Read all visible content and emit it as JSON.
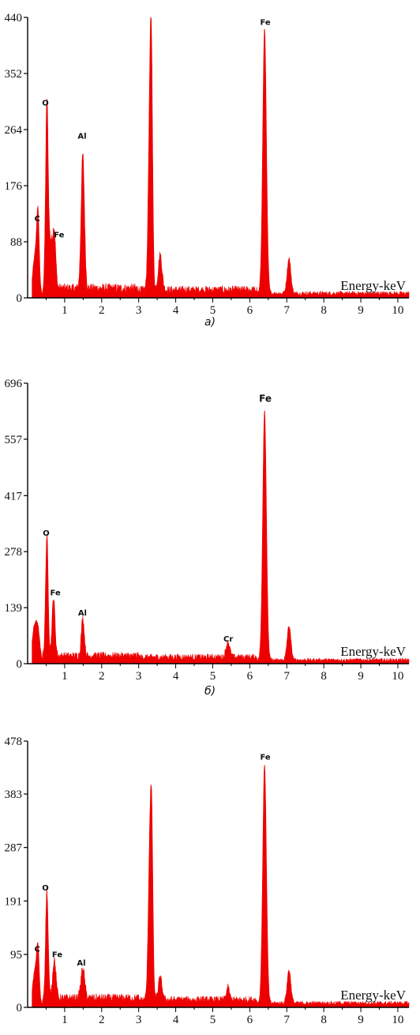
{
  "chart_data": [
    {
      "type": "area",
      "caption": "a)",
      "xlabel": "Energy-keV",
      "xlim": [
        0,
        10.3
      ],
      "ylim": [
        0,
        440
      ],
      "xticks": [
        1,
        2,
        3,
        4,
        5,
        6,
        7,
        8,
        9,
        10
      ],
      "yticks": [
        0,
        88,
        176,
        264,
        352,
        440
      ],
      "color": "#ee0000",
      "baseline": 14,
      "peaks": [
        {
          "x": 0.2,
          "y": 60,
          "w": 0.06
        },
        {
          "x": 0.28,
          "y": 112,
          "w": 0.035
        },
        {
          "x": 0.52,
          "y": 290,
          "w": 0.035
        },
        {
          "x": 0.62,
          "y": 70,
          "w": 0.05
        },
        {
          "x": 0.72,
          "y": 85,
          "w": 0.04
        },
        {
          "x": 1.49,
          "y": 210,
          "w": 0.045
        },
        {
          "x": 3.31,
          "y": 320,
          "w": 0.045
        },
        {
          "x": 3.35,
          "y": 180,
          "w": 0.03
        },
        {
          "x": 3.58,
          "y": 55,
          "w": 0.05
        },
        {
          "x": 6.4,
          "y": 415,
          "w": 0.05
        },
        {
          "x": 7.06,
          "y": 55,
          "w": 0.05
        }
      ],
      "labels": [
        {
          "text": "C",
          "x": 0.26,
          "y": 120
        },
        {
          "text": "O",
          "x": 0.48,
          "y": 302
        },
        {
          "text": "Fe",
          "x": 0.85,
          "y": 95
        },
        {
          "text": "Al",
          "x": 1.47,
          "y": 250
        },
        {
          "text": "Fe",
          "x": 6.42,
          "y": 428
        }
      ]
    },
    {
      "type": "area",
      "caption": "б)",
      "xlabel": "Energy-keV",
      "xlim": [
        0,
        10.3
      ],
      "ylim": [
        0,
        696
      ],
      "xticks": [
        1,
        2,
        3,
        4,
        5,
        6,
        7,
        8,
        9,
        10
      ],
      "yticks": [
        0,
        139,
        278,
        417,
        557,
        696
      ],
      "color": "#ee0000",
      "baseline": 18,
      "peaks": [
        {
          "x": 0.18,
          "y": 80,
          "w": 0.06
        },
        {
          "x": 0.28,
          "y": 70,
          "w": 0.05
        },
        {
          "x": 0.52,
          "y": 300,
          "w": 0.035
        },
        {
          "x": 0.7,
          "y": 145,
          "w": 0.04
        },
        {
          "x": 1.49,
          "y": 95,
          "w": 0.04
        },
        {
          "x": 5.41,
          "y": 38,
          "w": 0.05
        },
        {
          "x": 6.4,
          "y": 620,
          "w": 0.05
        },
        {
          "x": 7.06,
          "y": 85,
          "w": 0.05
        }
      ],
      "labels": [
        {
          "text": "O",
          "x": 0.5,
          "y": 318
        },
        {
          "text": "Fe",
          "x": 0.75,
          "y": 170
        },
        {
          "text": "Al",
          "x": 1.48,
          "y": 120
        },
        {
          "text": "Cr",
          "x": 5.42,
          "y": 55
        },
        {
          "text": "Fe",
          "x": 6.42,
          "y": 650
        }
      ]
    },
    {
      "type": "area",
      "caption": "",
      "xlabel": "Energy-keV",
      "xlim": [
        0,
        10.3
      ],
      "ylim": [
        0,
        478
      ],
      "xticks": [
        1,
        2,
        3,
        4,
        5,
        6,
        7,
        8,
        9,
        10
      ],
      "yticks": [
        0,
        95,
        191,
        287,
        383,
        478
      ],
      "color": "#ee0000",
      "baseline": 15,
      "peaks": [
        {
          "x": 0.2,
          "y": 60,
          "w": 0.06
        },
        {
          "x": 0.28,
          "y": 85,
          "w": 0.035
        },
        {
          "x": 0.52,
          "y": 195,
          "w": 0.035
        },
        {
          "x": 0.72,
          "y": 70,
          "w": 0.045
        },
        {
          "x": 1.49,
          "y": 55,
          "w": 0.05
        },
        {
          "x": 3.31,
          "y": 310,
          "w": 0.045
        },
        {
          "x": 3.36,
          "y": 170,
          "w": 0.03
        },
        {
          "x": 3.58,
          "y": 40,
          "w": 0.05
        },
        {
          "x": 5.41,
          "y": 22,
          "w": 0.04
        },
        {
          "x": 6.4,
          "y": 430,
          "w": 0.05
        },
        {
          "x": 7.06,
          "y": 60,
          "w": 0.05
        }
      ],
      "labels": [
        {
          "text": "C",
          "x": 0.26,
          "y": 100
        },
        {
          "text": "O",
          "x": 0.48,
          "y": 210
        },
        {
          "text": "Fe",
          "x": 0.8,
          "y": 90
        },
        {
          "text": "Al",
          "x": 1.45,
          "y": 75
        },
        {
          "text": "Fe",
          "x": 6.42,
          "y": 445
        }
      ]
    }
  ]
}
